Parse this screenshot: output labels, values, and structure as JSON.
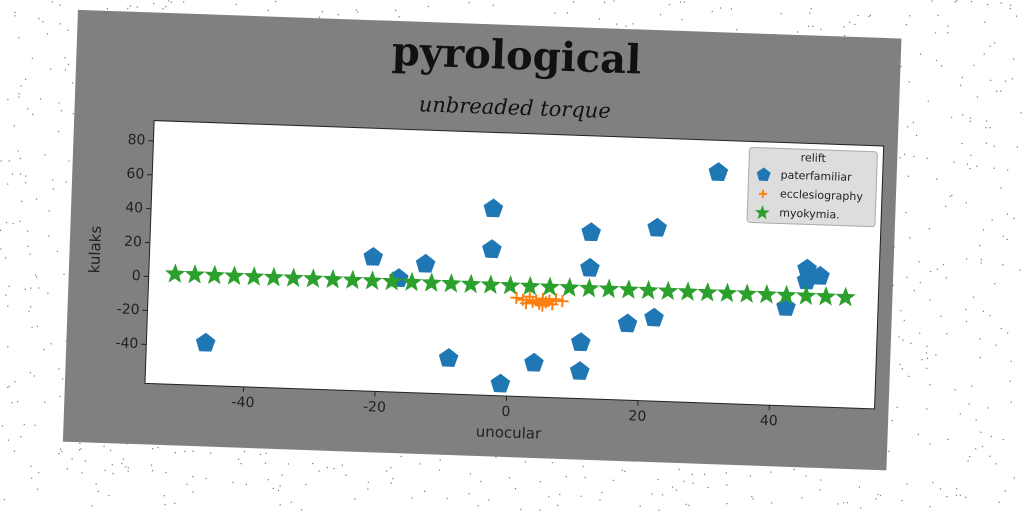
{
  "chart_data": {
    "type": "scatter",
    "title": "pyrological",
    "subtitle": "unbreaded torque",
    "x_label": "unocular",
    "y_label": "kulaks",
    "xlim": [
      -55,
      56
    ],
    "ylim": [
      -63,
      92
    ],
    "xticks": [
      -40,
      -20,
      0,
      20,
      40
    ],
    "yticks": [
      -40,
      -20,
      0,
      20,
      40,
      60,
      80
    ],
    "legend_title": "relift",
    "legend_loc": "upper right",
    "series": [
      {
        "name": "paterfamiliar",
        "color": "#1f77b4",
        "marker": "pentagon",
        "x": [
          -46,
          -21,
          -17,
          -13,
          -9,
          -3,
          -3,
          -1,
          4,
          11,
          11,
          12,
          12,
          18,
          22,
          22,
          31,
          42,
          45,
          45,
          47
        ],
        "values": [
          -38,
          16,
          4,
          13,
          -42,
          47,
          23,
          -56,
          -43,
          -47,
          -30,
          14,
          35,
          -18,
          -14,
          39,
          73,
          -5,
          18,
          11,
          14
        ]
      },
      {
        "name": "ecclesiography",
        "color": "#ff7f0e",
        "marker": "plus",
        "x": [
          1,
          2,
          3,
          3.5,
          4,
          4.5,
          5,
          5.5,
          6,
          6.5,
          7,
          8,
          2.5,
          5
        ],
        "values": [
          -5,
          -6,
          -4,
          -7,
          -6,
          -8,
          -5,
          -7,
          -6,
          -8,
          -5,
          -6,
          -8,
          -9
        ]
      },
      {
        "name": "myokymia.",
        "color": "#2ca02c",
        "marker": "star",
        "x": [
          -51,
          -48,
          -45,
          -42,
          -39,
          -36,
          -33,
          -30,
          -27,
          -24,
          -21,
          -18,
          -15,
          -12,
          -9,
          -6,
          -3,
          0,
          3,
          6,
          9,
          12,
          15,
          18,
          21,
          24,
          27,
          30,
          33,
          36,
          39,
          42,
          45,
          48,
          51
        ],
        "values": [
          2,
          2,
          2,
          2,
          2,
          2,
          2,
          2,
          2,
          2,
          2,
          2,
          2,
          2,
          2,
          2,
          2,
          2,
          2,
          2,
          2,
          2,
          2,
          2,
          2,
          2,
          2,
          2,
          2,
          2,
          2,
          2,
          2,
          2,
          2
        ]
      }
    ]
  }
}
